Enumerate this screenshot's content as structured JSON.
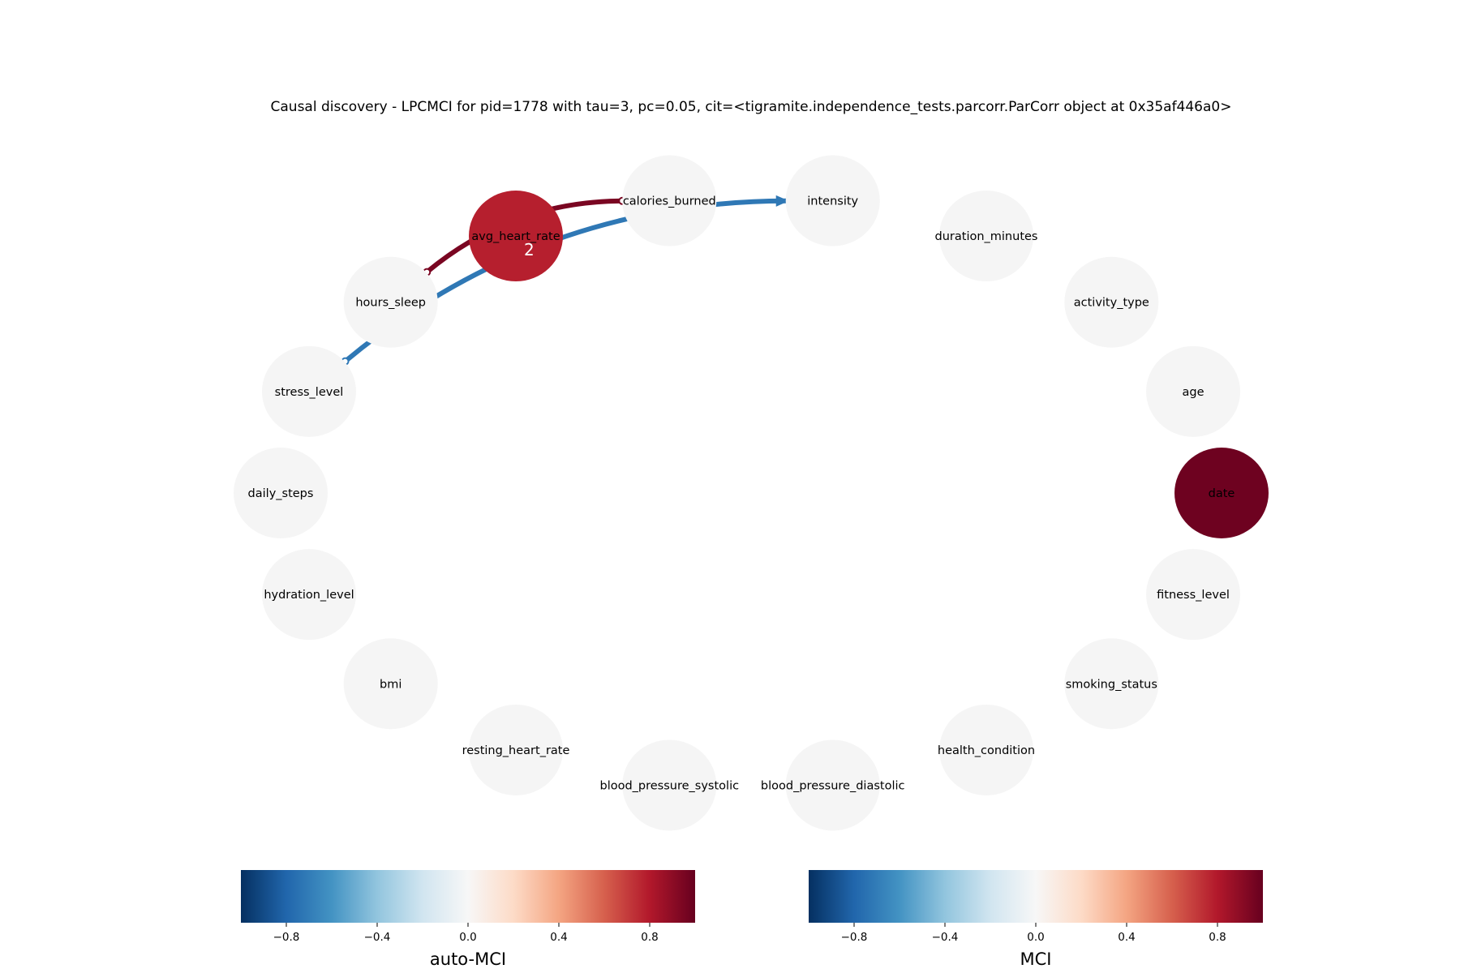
{
  "title": "Causal discovery - LPCMCI for pid=1778 with tau=3, pc=0.05, cit=<tigramite.independence_tests.parcorr.ParCorr object at 0x35af446a0>",
  "nodes": [
    {
      "id": "intensity",
      "label": "intensity",
      "auto_mci": null
    },
    {
      "id": "duration_minutes",
      "label": "duration_minutes",
      "auto_mci": null
    },
    {
      "id": "activity_type",
      "label": "activity_type",
      "auto_mci": null
    },
    {
      "id": "age",
      "label": "age",
      "auto_mci": null
    },
    {
      "id": "date",
      "label": "date",
      "auto_mci": 0.98
    },
    {
      "id": "fitness_level",
      "label": "fitness_level",
      "auto_mci": null
    },
    {
      "id": "smoking_status",
      "label": "smoking_status",
      "auto_mci": null
    },
    {
      "id": "health_condition",
      "label": "health_condition",
      "auto_mci": null
    },
    {
      "id": "blood_pressure_diastolic",
      "label": "blood_pressure_diastolic",
      "auto_mci": null
    },
    {
      "id": "blood_pressure_systolic",
      "label": "blood_pressure_systolic",
      "auto_mci": null
    },
    {
      "id": "resting_heart_rate",
      "label": "resting_heart_rate",
      "auto_mci": null
    },
    {
      "id": "bmi",
      "label": "bmi",
      "auto_mci": null
    },
    {
      "id": "hydration_level",
      "label": "hydration_level",
      "auto_mci": null
    },
    {
      "id": "daily_steps",
      "label": "daily_steps",
      "auto_mci": null
    },
    {
      "id": "stress_level",
      "label": "stress_level",
      "auto_mci": null
    },
    {
      "id": "hours_sleep",
      "label": "hours_sleep",
      "auto_mci": null
    },
    {
      "id": "avg_heart_rate",
      "label": "avg_heart_rate",
      "auto_mci": 0.78
    },
    {
      "id": "calories_burned",
      "label": "calories_burned",
      "auto_mci": null
    }
  ],
  "edges": [
    {
      "source": "hours_sleep",
      "target": "calories_burned",
      "mci": 0.95,
      "source_mark": "o",
      "target_mark": "o",
      "label": ""
    },
    {
      "source": "stress_level",
      "target": "intensity",
      "mci": -0.72,
      "source_mark": "o",
      "target_mark": ">",
      "label": "2"
    }
  ],
  "colorbars": [
    {
      "label": "auto-MCI",
      "ticks": [
        "−0.8",
        "−0.4",
        "0.0",
        "0.4",
        "0.8"
      ],
      "tick_values": [
        -0.8,
        -0.4,
        0.0,
        0.4,
        0.8
      ],
      "range": [
        -1,
        1
      ],
      "colormap": "RdBu_r"
    },
    {
      "label": "MCI",
      "ticks": [
        "−0.8",
        "−0.4",
        "0.0",
        "0.4",
        "0.8"
      ],
      "tick_values": [
        -0.8,
        -0.4,
        0.0,
        0.4,
        0.8
      ],
      "range": [
        -1,
        1
      ],
      "colormap": "RdBu_r"
    }
  ],
  "colors": {
    "node_default": "#f5f5f5",
    "rdbu_r": [
      "#053061",
      "#2166ac",
      "#4393c3",
      "#92c5de",
      "#d1e5f0",
      "#f7f7f7",
      "#fddbc7",
      "#f4a582",
      "#d6604d",
      "#b2182b",
      "#67001f"
    ]
  }
}
